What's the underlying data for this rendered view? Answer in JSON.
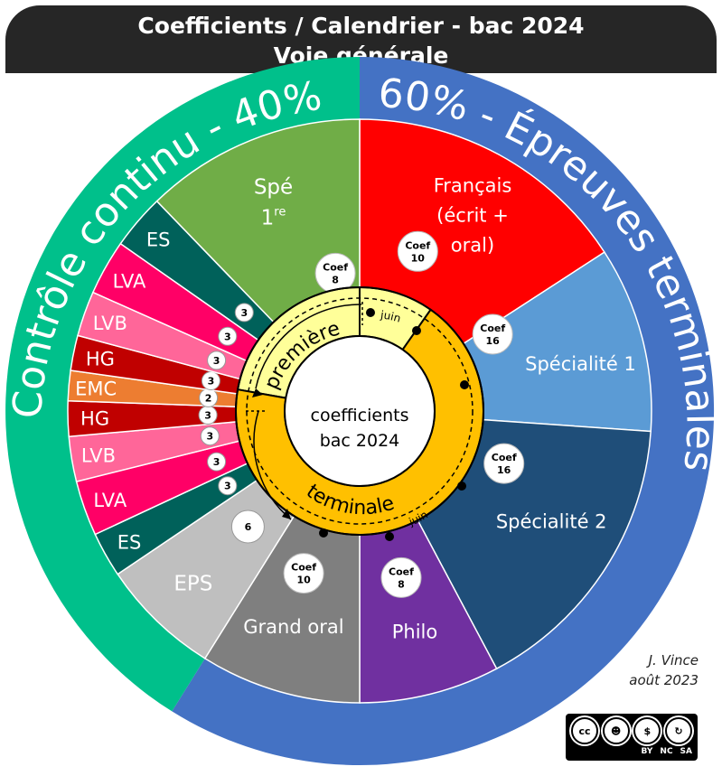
{
  "header": {
    "title_line1": "Coefficients / Calendrier  - bac 2024",
    "title_line2": "Voie générale"
  },
  "arcs": {
    "left": "Contrôle continu - 40%",
    "right": "60% - Épreuves terminales"
  },
  "center": {
    "line1": "coefficients",
    "line2": "bac 2024"
  },
  "years": {
    "premiere": "première",
    "terminale": "terminale",
    "month": "juin"
  },
  "right_segments": [
    {
      "label_lines": [
        "Français",
        "(écrit +",
        "oral)"
      ],
      "coef_word": "Coef",
      "coef": "10",
      "color": "#ff0000"
    },
    {
      "label_lines": [
        "Spécialité 1"
      ],
      "coef_word": "Coef",
      "coef": "16",
      "color": "#5b9bd5"
    },
    {
      "label_lines": [
        "Spécialité 2"
      ],
      "coef_word": "Coef",
      "coef": "16",
      "color": "#1f4e79"
    },
    {
      "label_lines": [
        "Philo"
      ],
      "coef_word": "Coef",
      "coef": "8",
      "color": "#7030a0"
    },
    {
      "label_lines": [
        "Grand oral"
      ],
      "coef_word": "Coef",
      "coef": "10",
      "color": "#7f7f7f"
    }
  ],
  "left_segments": [
    {
      "label": "EPS",
      "coef": "6",
      "color": "#bfbfbf"
    },
    {
      "label": "ES",
      "coef": "3",
      "color": "#00615a"
    },
    {
      "label": "LVA",
      "coef": "3",
      "color": "#ff0066"
    },
    {
      "label": "LVB",
      "coef": "3",
      "color": "#ff6699"
    },
    {
      "label": "HG",
      "coef": "3",
      "color": "#c00000"
    },
    {
      "label": "EMC",
      "coef": "2",
      "color": "#ed7d31"
    },
    {
      "label": "HG",
      "coef": "3",
      "color": "#c00000"
    },
    {
      "label": "LVB",
      "coef": "3",
      "color": "#ff6699"
    },
    {
      "label": "LVA",
      "coef": "3",
      "color": "#ff0066"
    },
    {
      "label": "ES",
      "coef": "3",
      "color": "#00615a"
    },
    {
      "label": "Spé",
      "label2": "1",
      "sup": "re",
      "coef_word": "Coef",
      "coef": "8",
      "color": "#70ad47"
    }
  ],
  "colors": {
    "header_bg": "#262626",
    "continu": "#00c08b",
    "terminales": "#4472c4",
    "premiere_ring": "#ffff99",
    "terminale_ring": "#ffc000"
  },
  "author": {
    "name": "J. Vince",
    "date": "août 2023"
  },
  "license": {
    "cc": "cc",
    "by": "BY",
    "nc": "NC",
    "sa": "SA"
  }
}
